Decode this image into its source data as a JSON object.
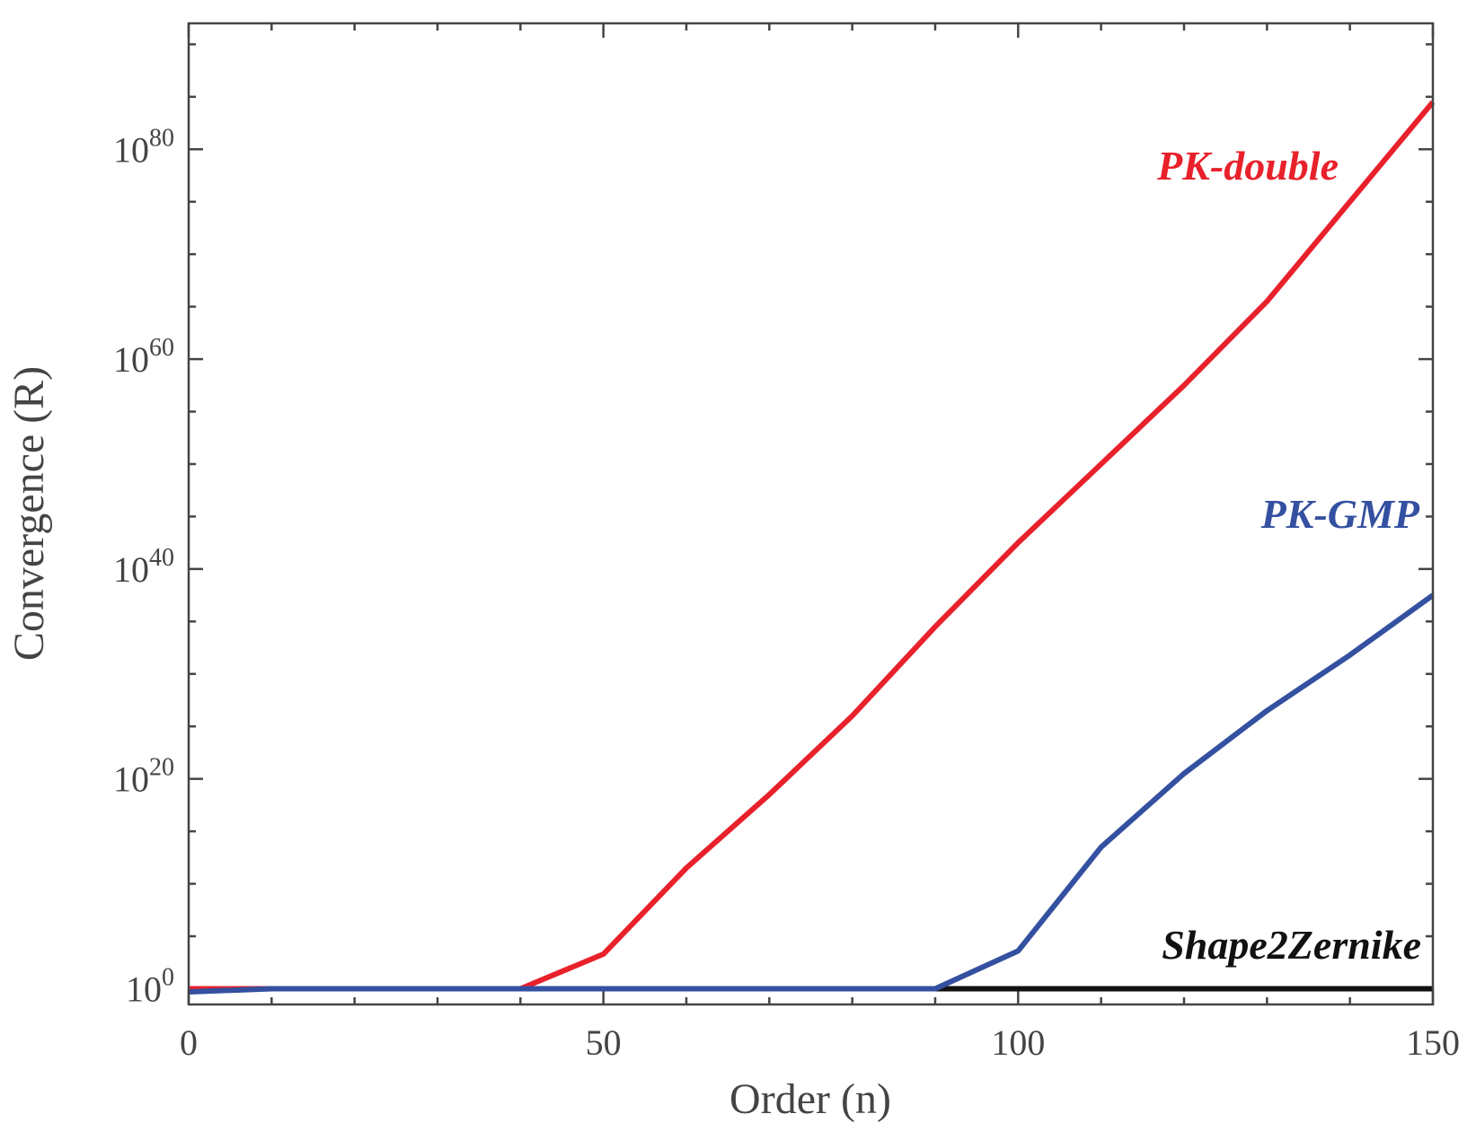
{
  "chart_data": {
    "type": "line",
    "xlabel": "Order (n)",
    "ylabel": "Convergence (R)",
    "xlim": [
      0,
      150
    ],
    "ylim_log10": [
      -1.5,
      92
    ],
    "y_scale": "log",
    "x_ticks": [
      "0",
      "50",
      "100",
      "150"
    ],
    "y_ticks": [
      {
        "base": "10",
        "exp": "0"
      },
      {
        "base": "10",
        "exp": "20"
      },
      {
        "base": "10",
        "exp": "40"
      },
      {
        "base": "10",
        "exp": "60"
      },
      {
        "base": "10",
        "exp": "80"
      }
    ],
    "grid": false,
    "x": [
      0,
      10,
      20,
      30,
      40,
      50,
      60,
      70,
      80,
      90,
      100,
      110,
      120,
      130,
      140,
      150
    ],
    "series": [
      {
        "name": "PK-double",
        "color": "#e8212b",
        "log10_values": [
          0,
          0,
          0,
          0,
          0,
          3.3,
          11.5,
          18.5,
          26,
          34.5,
          42.5,
          50,
          57.5,
          65.5,
          75,
          84.5
        ]
      },
      {
        "name": "PK-GMP",
        "color": "#3450a0",
        "log10_values": [
          -0.3,
          0,
          0,
          0,
          0,
          0,
          0,
          0,
          0,
          0,
          3.6,
          13.5,
          20.5,
          26.5,
          31.8,
          37.5
        ]
      },
      {
        "name": "Shape2Zernike",
        "color": "#111111",
        "log10_values": [
          0,
          0,
          0,
          0,
          0,
          0,
          0,
          0,
          0,
          0,
          0,
          0,
          0,
          0,
          0,
          0
        ]
      }
    ]
  }
}
